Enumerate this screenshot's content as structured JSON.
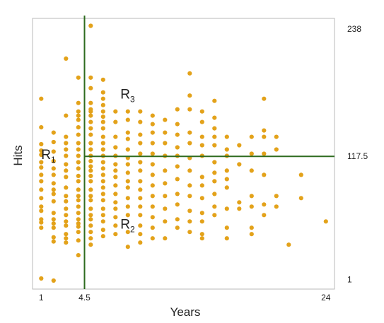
{
  "chart_data": {
    "type": "scatter",
    "xlabel": "Years",
    "ylabel": "Hits",
    "xlim": [
      0.3,
      24.7
    ],
    "ylim": [
      -8,
      248
    ],
    "x_ticks": [
      {
        "value": 1,
        "label": "1"
      },
      {
        "value": 4.5,
        "label": "4.5"
      },
      {
        "value": 24,
        "label": "24"
      }
    ],
    "y_ticks": [
      {
        "value": 238,
        "label": "238"
      },
      {
        "value": 117.5,
        "label": "117.5"
      },
      {
        "value": 1,
        "label": "1"
      }
    ],
    "grid": false,
    "point_color": "#E3A21A",
    "split_color": "#2E6B1F",
    "splits": {
      "vertical_x": 4.5,
      "horizontal_y": 117.5
    },
    "region_labels": [
      {
        "text": "R",
        "sub": "1",
        "x": 1.0,
        "y": 115
      },
      {
        "text": "R",
        "sub": "2",
        "x": 7.4,
        "y": 49
      },
      {
        "text": "R",
        "sub": "3",
        "x": 7.4,
        "y": 172
      }
    ],
    "points": [
      [
        1,
        2
      ],
      [
        2,
        0
      ],
      [
        1,
        172
      ],
      [
        1,
        145
      ],
      [
        1,
        129
      ],
      [
        1,
        123
      ],
      [
        1,
        119
      ],
      [
        1,
        112
      ],
      [
        1,
        107
      ],
      [
        1,
        100
      ],
      [
        1,
        94
      ],
      [
        1,
        86
      ],
      [
        1,
        78
      ],
      [
        1,
        70
      ],
      [
        1,
        66
      ],
      [
        1,
        58
      ],
      [
        1,
        55
      ],
      [
        1,
        50
      ],
      [
        2,
        140
      ],
      [
        2,
        131
      ],
      [
        2,
        122
      ],
      [
        2,
        113
      ],
      [
        2,
        106
      ],
      [
        2,
        100
      ],
      [
        2,
        92
      ],
      [
        2,
        86
      ],
      [
        2,
        82
      ],
      [
        2,
        75
      ],
      [
        2,
        64
      ],
      [
        2,
        58
      ],
      [
        2,
        54
      ],
      [
        2,
        50
      ],
      [
        2,
        41
      ],
      [
        2,
        37
      ],
      [
        3,
        210
      ],
      [
        3,
        156
      ],
      [
        3,
        136
      ],
      [
        3,
        130
      ],
      [
        3,
        124
      ],
      [
        3,
        118
      ],
      [
        3,
        110
      ],
      [
        3,
        104
      ],
      [
        3,
        98
      ],
      [
        3,
        88
      ],
      [
        3,
        80
      ],
      [
        3,
        75
      ],
      [
        3,
        68
      ],
      [
        3,
        62
      ],
      [
        3,
        56
      ],
      [
        3,
        52
      ],
      [
        3,
        44
      ],
      [
        3,
        40
      ],
      [
        3,
        36
      ],
      [
        4,
        192
      ],
      [
        4,
        168
      ],
      [
        4,
        160
      ],
      [
        4,
        156
      ],
      [
        4,
        152
      ],
      [
        4,
        145
      ],
      [
        4,
        138
      ],
      [
        4,
        130
      ],
      [
        4,
        124
      ],
      [
        4,
        118
      ],
      [
        4,
        112
      ],
      [
        4,
        106
      ],
      [
        4,
        99
      ],
      [
        4,
        94
      ],
      [
        4,
        86
      ],
      [
        4,
        80
      ],
      [
        4,
        76
      ],
      [
        4,
        70
      ],
      [
        4,
        64
      ],
      [
        4,
        58
      ],
      [
        4,
        54
      ],
      [
        4,
        51
      ],
      [
        4,
        46
      ],
      [
        4,
        38
      ],
      [
        4,
        24
      ],
      [
        5,
        241
      ],
      [
        5,
        192
      ],
      [
        5,
        182
      ],
      [
        5,
        168
      ],
      [
        5,
        162
      ],
      [
        5,
        160
      ],
      [
        5,
        156
      ],
      [
        5,
        150
      ],
      [
        5,
        144
      ],
      [
        5,
        138
      ],
      [
        5,
        130
      ],
      [
        5,
        124
      ],
      [
        5,
        118
      ],
      [
        5,
        113
      ],
      [
        5,
        108
      ],
      [
        5,
        104
      ],
      [
        5,
        99
      ],
      [
        5,
        94
      ],
      [
        5,
        86
      ],
      [
        5,
        80
      ],
      [
        5,
        76
      ],
      [
        5,
        68
      ],
      [
        5,
        62
      ],
      [
        5,
        58
      ],
      [
        5,
        52
      ],
      [
        5,
        46
      ],
      [
        5,
        40
      ],
      [
        5,
        34
      ],
      [
        6,
        190
      ],
      [
        6,
        178
      ],
      [
        6,
        172
      ],
      [
        6,
        166
      ],
      [
        6,
        160
      ],
      [
        6,
        155
      ],
      [
        6,
        150
      ],
      [
        6,
        144
      ],
      [
        6,
        136
      ],
      [
        6,
        130
      ],
      [
        6,
        124
      ],
      [
        6,
        118
      ],
      [
        6,
        112
      ],
      [
        6,
        106
      ],
      [
        6,
        100
      ],
      [
        6,
        94
      ],
      [
        6,
        88
      ],
      [
        6,
        82
      ],
      [
        6,
        76
      ],
      [
        6,
        68
      ],
      [
        6,
        62
      ],
      [
        6,
        56
      ],
      [
        6,
        48
      ],
      [
        6,
        42
      ],
      [
        7,
        160
      ],
      [
        7,
        150
      ],
      [
        7,
        136
      ],
      [
        7,
        126
      ],
      [
        7,
        118
      ],
      [
        7,
        110
      ],
      [
        7,
        104
      ],
      [
        7,
        98
      ],
      [
        7,
        90
      ],
      [
        7,
        82
      ],
      [
        7,
        74
      ],
      [
        7,
        68
      ],
      [
        7,
        60
      ],
      [
        7,
        52
      ],
      [
        7,
        44
      ],
      [
        8,
        160
      ],
      [
        8,
        152
      ],
      [
        8,
        140
      ],
      [
        8,
        134
      ],
      [
        8,
        124
      ],
      [
        8,
        116
      ],
      [
        8,
        110
      ],
      [
        8,
        102
      ],
      [
        8,
        94
      ],
      [
        8,
        88
      ],
      [
        8,
        78
      ],
      [
        8,
        70
      ],
      [
        8,
        62
      ],
      [
        8,
        46
      ],
      [
        8,
        32
      ],
      [
        9,
        160
      ],
      [
        9,
        150
      ],
      [
        9,
        138
      ],
      [
        9,
        130
      ],
      [
        9,
        120
      ],
      [
        9,
        112
      ],
      [
        9,
        104
      ],
      [
        9,
        94
      ],
      [
        9,
        86
      ],
      [
        9,
        78
      ],
      [
        9,
        70
      ],
      [
        9,
        62
      ],
      [
        9,
        52
      ],
      [
        9,
        44
      ],
      [
        9,
        36
      ],
      [
        10,
        156
      ],
      [
        10,
        148
      ],
      [
        10,
        140
      ],
      [
        10,
        130
      ],
      [
        10,
        120
      ],
      [
        10,
        110
      ],
      [
        10,
        100
      ],
      [
        10,
        90
      ],
      [
        10,
        80
      ],
      [
        10,
        70
      ],
      [
        10,
        60
      ],
      [
        10,
        50
      ],
      [
        10,
        40
      ],
      [
        11,
        152
      ],
      [
        11,
        140
      ],
      [
        11,
        130
      ],
      [
        11,
        118
      ],
      [
        11,
        104
      ],
      [
        11,
        92
      ],
      [
        11,
        80
      ],
      [
        11,
        68
      ],
      [
        11,
        56
      ],
      [
        11,
        40
      ],
      [
        12,
        162
      ],
      [
        12,
        148
      ],
      [
        12,
        138
      ],
      [
        12,
        126
      ],
      [
        12,
        118
      ],
      [
        12,
        108
      ],
      [
        12,
        96
      ],
      [
        12,
        82
      ],
      [
        12,
        72
      ],
      [
        12,
        58
      ],
      [
        12,
        50
      ],
      [
        13,
        196
      ],
      [
        13,
        175
      ],
      [
        13,
        162
      ],
      [
        13,
        140
      ],
      [
        13,
        130
      ],
      [
        13,
        116
      ],
      [
        13,
        104
      ],
      [
        13,
        90
      ],
      [
        13,
        80
      ],
      [
        13,
        66
      ],
      [
        13,
        56
      ],
      [
        13,
        46
      ],
      [
        14,
        160
      ],
      [
        14,
        150
      ],
      [
        14,
        136
      ],
      [
        14,
        128
      ],
      [
        14,
        118
      ],
      [
        14,
        98
      ],
      [
        14,
        90
      ],
      [
        14,
        78
      ],
      [
        14,
        64
      ],
      [
        14,
        56
      ],
      [
        14,
        44
      ],
      [
        14,
        40
      ],
      [
        15,
        170
      ],
      [
        15,
        154
      ],
      [
        15,
        144
      ],
      [
        15,
        136
      ],
      [
        15,
        128
      ],
      [
        15,
        112
      ],
      [
        15,
        102
      ],
      [
        15,
        94
      ],
      [
        15,
        82
      ],
      [
        15,
        70
      ],
      [
        15,
        62
      ],
      [
        16,
        136
      ],
      [
        16,
        124
      ],
      [
        16,
        118
      ],
      [
        16,
        104
      ],
      [
        16,
        96
      ],
      [
        16,
        88
      ],
      [
        16,
        68
      ],
      [
        16,
        50
      ],
      [
        16,
        40
      ],
      [
        17,
        128
      ],
      [
        17,
        110
      ],
      [
        17,
        74
      ],
      [
        17,
        68
      ],
      [
        18,
        136
      ],
      [
        18,
        120
      ],
      [
        18,
        104
      ],
      [
        18,
        80
      ],
      [
        18,
        70
      ],
      [
        18,
        50
      ],
      [
        18,
        44
      ],
      [
        19,
        172
      ],
      [
        19,
        142
      ],
      [
        19,
        136
      ],
      [
        19,
        120
      ],
      [
        19,
        100
      ],
      [
        19,
        72
      ],
      [
        19,
        62
      ],
      [
        20,
        136
      ],
      [
        20,
        124
      ],
      [
        20,
        80
      ],
      [
        20,
        70
      ],
      [
        21,
        34
      ],
      [
        22,
        100
      ],
      [
        22,
        78
      ],
      [
        24,
        56
      ]
    ]
  }
}
